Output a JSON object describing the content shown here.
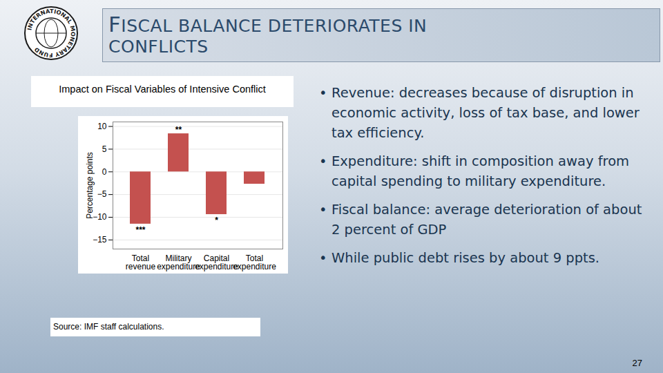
{
  "slide": {
    "logo_text": "INTERNATIONAL MONETARY FUND",
    "title_lines": [
      "FISCAL BALANCE DETERIORATES IN",
      "CONFLICTS"
    ],
    "bullets": [
      "Revenue: decreases because of disruption in economic activity, loss of tax base, and lower tax efficiency.",
      "Expenditure: shift in composition away from capital spending to military expenditure.",
      "Fiscal balance: average deterioration of about 2 percent of GDP",
      "While public debt rises by about 9 ppts."
    ],
    "source": "Source: IMF staff calculations.",
    "page_number": "27"
  },
  "chart_data": {
    "type": "bar",
    "title": "Impact on Fiscal Variables of Intensive Conflict",
    "categories": [
      "Total\nrevenue",
      "Military\nexpenditure",
      "Capital\nexpenditure",
      "Total\nexpenditure"
    ],
    "values": [
      -11.5,
      8.4,
      -9.4,
      -2.7
    ],
    "annotations": [
      "***",
      "**",
      "*",
      null
    ],
    "color": "#c4514f",
    "ylabel": "Percentage points",
    "ylim": [
      -17,
      11
    ],
    "yticks": [
      -15,
      -10,
      -5,
      0,
      5,
      10
    ],
    "grid": true
  }
}
